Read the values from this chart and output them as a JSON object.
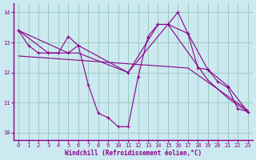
{
  "xlabel": "Windchill (Refroidissement éolien,°C)",
  "background_color": "#cce8f0",
  "grid_color": "#99ccbb",
  "line_color": "#880088",
  "spine_color": "#880088",
  "tick_color": "#880088",
  "xlim": [
    -0.5,
    23.5
  ],
  "ylim": [
    9.75,
    14.3
  ],
  "yticks": [
    10,
    11,
    12,
    13,
    14
  ],
  "xticks": [
    0,
    1,
    2,
    3,
    4,
    5,
    6,
    7,
    8,
    9,
    10,
    11,
    12,
    13,
    14,
    15,
    16,
    17,
    18,
    19,
    20,
    21,
    22,
    23
  ],
  "series": [
    {
      "x": [
        0,
        1,
        2,
        3,
        4,
        5,
        6,
        7,
        8,
        9,
        10,
        11,
        12,
        13,
        14,
        15,
        16,
        17,
        18,
        19,
        20,
        21,
        22,
        23
      ],
      "y": [
        13.4,
        12.9,
        12.65,
        12.65,
        12.65,
        13.2,
        12.9,
        11.6,
        10.65,
        10.5,
        10.2,
        10.2,
        11.85,
        13.2,
        13.6,
        13.6,
        14.0,
        13.3,
        12.15,
        12.1,
        11.7,
        11.5,
        10.8,
        10.7
      ],
      "markers": true
    },
    {
      "x": [
        0,
        3,
        5,
        6,
        11,
        14,
        15,
        17,
        19,
        21,
        23
      ],
      "y": [
        13.4,
        12.65,
        12.65,
        12.9,
        12.0,
        13.6,
        13.6,
        13.3,
        12.1,
        11.55,
        10.7
      ],
      "markers": true
    },
    {
      "x": [
        0,
        5,
        6,
        11,
        15,
        19,
        21,
        23
      ],
      "y": [
        13.4,
        12.65,
        12.65,
        12.0,
        13.6,
        11.75,
        11.15,
        10.7
      ],
      "markers": false
    },
    {
      "x": [
        0,
        17,
        23
      ],
      "y": [
        12.55,
        12.15,
        10.75
      ],
      "markers": false
    }
  ]
}
